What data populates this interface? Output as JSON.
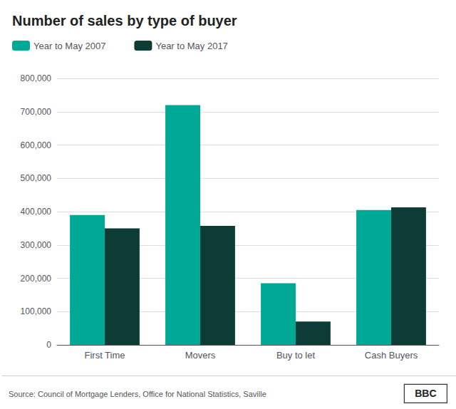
{
  "chart_data": {
    "type": "bar",
    "title": "Number of sales by type of buyer",
    "categories": [
      "First Time",
      "Movers",
      "Buy to let",
      "Cash Buyers"
    ],
    "series": [
      {
        "name": "Year to May 2007",
        "color": "#00A896",
        "values": [
          390000,
          720000,
          185000,
          405000
        ]
      },
      {
        "name": "Year to May 2017",
        "color": "#0D3B36",
        "values": [
          350000,
          357000,
          70000,
          413000
        ]
      }
    ],
    "ylim": [
      0,
      800000
    ],
    "yticks": [
      0,
      {
        "value": 100000,
        "label": "100,000"
      },
      {
        "value": 200000,
        "label": "200,000"
      },
      {
        "value": 300000,
        "label": "300,000"
      },
      {
        "value": 400000,
        "label": "400,000"
      },
      {
        "value": 500000,
        "label": "500,000"
      },
      {
        "value": 600000,
        "label": "600,000"
      },
      {
        "value": 700000,
        "label": "700,000"
      },
      {
        "value": 800000,
        "label": "800,000"
      }
    ],
    "grid": true,
    "legend": "top",
    "annotations": [
      "Source: Council of Mortgage Lenders, Office for National Statistics, Saville",
      "BBC"
    ]
  }
}
